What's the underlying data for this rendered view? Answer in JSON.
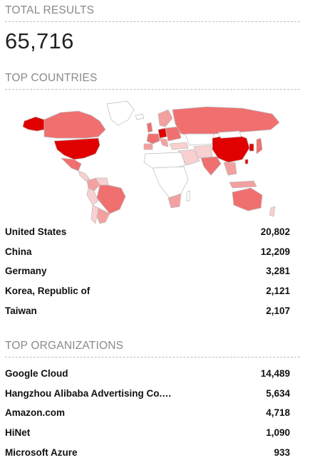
{
  "total_results": {
    "label": "TOTAL RESULTS",
    "value": "65,716"
  },
  "top_countries": {
    "label": "TOP COUNTRIES",
    "items": [
      {
        "name": "United States",
        "count": "20,802"
      },
      {
        "name": "China",
        "count": "12,209"
      },
      {
        "name": "Germany",
        "count": "3,281"
      },
      {
        "name": "Korea, Republic of",
        "count": "2,121"
      },
      {
        "name": "Taiwan",
        "count": "2,107"
      }
    ]
  },
  "top_organizations": {
    "label": "TOP ORGANIZATIONS",
    "items": [
      {
        "name": "Google Cloud",
        "count": "14,489"
      },
      {
        "name": "Hangzhou Alibaba Advertising Co.…",
        "count": "5,634"
      },
      {
        "name": "Amazon.com",
        "count": "4,718"
      },
      {
        "name": "HiNet",
        "count": "1,090"
      },
      {
        "name": "Microsoft Azure",
        "count": "933"
      }
    ]
  },
  "colors": {
    "heat_max": "#e00000",
    "heat_high": "#f07070",
    "heat_mid": "#f4a0a0",
    "heat_low": "#f9d0d0",
    "land_empty": "#ffffff",
    "border": "#bbbbbb"
  }
}
